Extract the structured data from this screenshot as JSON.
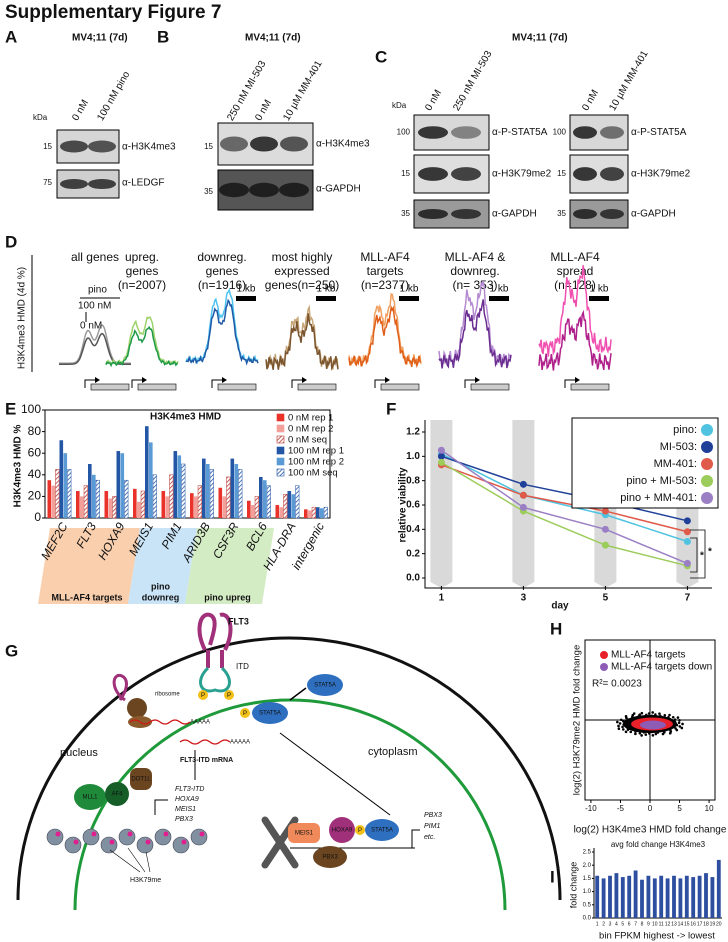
{
  "title": "Supplementary Figure 7",
  "A": {
    "letter": "A",
    "condition": "MV4;11 (7d)",
    "kda": "kDa",
    "lanes": [
      "0 nM",
      "100 nM pino"
    ],
    "markers": [
      "15",
      "75"
    ],
    "antibodies": [
      "α-H3K4me3",
      "α-LEDGF"
    ]
  },
  "B": {
    "letter": "B",
    "condition": "MV4;11 (7d)",
    "lanes": [
      "250 nM MI-503",
      "0 nM",
      "10 µM MM-401"
    ],
    "markers": [
      "15",
      "35"
    ],
    "antibodies": [
      "α-H3K4me3",
      "α-GAPDH"
    ]
  },
  "C": {
    "letter": "C",
    "condition": "MV4;11 (7d)",
    "kda": "kDa",
    "lanes_left": [
      "0 nM",
      "250 nM MI-503"
    ],
    "lanes_right": [
      "0 nM",
      "10 µM MM-401"
    ],
    "markers_left": [
      "100",
      "15",
      "35"
    ],
    "markers_right": [
      "100",
      "15",
      "35"
    ],
    "antibodies_left": [
      "α-P-STAT5A",
      "α-H3K79me2",
      "α-GAPDH"
    ],
    "antibodies_right": [
      "α-P-STAT5A",
      "α-H3K79me2",
      "α-GAPDH"
    ]
  },
  "D": {
    "letter": "D",
    "ylabel": "H3K4me3 HMD (4d %)",
    "treatment": "pino",
    "high": "100 nM",
    "low": "0 nM",
    "scale_bar": "1 kb",
    "groups": [
      {
        "lines": [
          "all genes"
        ],
        "colors": [
          "#9a9a9a",
          "#555555"
        ],
        "bar": false
      },
      {
        "lines": [
          "upreg.",
          "genes",
          "(n=2007)"
        ],
        "colors": [
          "#9dd36b",
          "#1f9a48"
        ],
        "bar": false
      },
      {
        "lines": [
          "downreg.",
          "genes",
          "(n=1916)"
        ],
        "colors": [
          "#4fc3f0",
          "#1f5aa6"
        ],
        "bar": true
      },
      {
        "lines": [
          "most highly",
          "expressed",
          "genes(n=250)"
        ],
        "colors": [
          "#c8a87a",
          "#7a5530"
        ],
        "bar": true
      },
      {
        "lines": [
          "MLL-AF4",
          "targets",
          "(n=2377)"
        ],
        "colors": [
          "#f0a060",
          "#e0601a"
        ],
        "bar": true
      },
      {
        "lines": [
          "MLL-AF4 &",
          "downreg.",
          "(n= 353)"
        ],
        "colors": [
          "#b48ad0",
          "#6a2e90"
        ],
        "bar": true
      },
      {
        "lines": [
          "MLL-AF4",
          "spread",
          "(n=128)"
        ],
        "colors": [
          "#f050b0",
          "#b0208a"
        ],
        "bar": true
      }
    ]
  },
  "G": {
    "letter": "G",
    "flt3": "FLT3",
    "itd": "ITD",
    "ribosome": "ribosome",
    "polya": "AAAAA",
    "p": "P",
    "stat5a": "STAT5A",
    "cytoplasm": "cytoplasm",
    "nucleus": "nucleus",
    "mrna": "FLT3-ITD mRNA",
    "mll1": "MLL1",
    "af4": "AF4",
    "dot1l": "DOT1L",
    "targets": [
      "FLT3-ITD",
      "HOXA9",
      "MEIS1",
      "PBX3"
    ],
    "h3k79me": "H3K79me",
    "meis1": "MEIS1",
    "hoxa9": "HOXA9",
    "pbx3": "PBX3",
    "outputs": [
      "PBX3",
      "PIM1",
      "etc."
    ]
  },
  "chart_data": [
    {
      "letter": "E",
      "type": "bar",
      "title": "H3K4me3 HMD",
      "ylabel": "H3K4me3 HMD %",
      "categories": [
        "MEF2C",
        "FLT3",
        "HOXA9",
        "MEIS1",
        "PIM1",
        "ARID3B",
        "CSF3R",
        "BCL6",
        "HLA-DRA",
        "intergenic"
      ],
      "ylim": [
        0,
        100
      ],
      "yticks": [
        0,
        20,
        40,
        60,
        80,
        100
      ],
      "series": [
        {
          "name": "0 nM rep 1",
          "color": "#e8322a",
          "pattern": "solid",
          "values": [
            35,
            25,
            25,
            27,
            25,
            23,
            28,
            16,
            12,
            8
          ]
        },
        {
          "name": "0 nM rep 2",
          "color": "#f4a09a",
          "pattern": "solid",
          "values": [
            30,
            20,
            18,
            15,
            20,
            20,
            20,
            12,
            10,
            7
          ]
        },
        {
          "name": "0 nM seq",
          "color": "#b8372f",
          "pattern": "hatched",
          "values": [
            45,
            30,
            20,
            25,
            40,
            30,
            38,
            20,
            22,
            10
          ]
        },
        {
          "name": "100 nM rep 1",
          "color": "#2456a6",
          "pattern": "solid",
          "values": [
            72,
            50,
            62,
            85,
            62,
            55,
            55,
            38,
            25,
            10
          ]
        },
        {
          "name": "100 nM rep 2",
          "color": "#5b9bd5",
          "pattern": "solid",
          "values": [
            60,
            40,
            60,
            70,
            58,
            50,
            50,
            35,
            22,
            9
          ]
        },
        {
          "name": "100 nM seq",
          "color": "#2456a6",
          "pattern": "hatched",
          "values": [
            45,
            35,
            35,
            40,
            50,
            45,
            45,
            30,
            30,
            10
          ]
        }
      ],
      "groups": [
        {
          "lines": [
            "MLL-AF4 targets"
          ],
          "color": "#f9cfae"
        },
        {
          "lines": [
            "pino",
            "downreg"
          ],
          "color": "#c9e4f7"
        },
        {
          "lines": [
            "pino upreg"
          ],
          "color": "#d4ecc4"
        }
      ]
    },
    {
      "letter": "F",
      "type": "line",
      "ylabel": "relative viability",
      "xlabel": "day",
      "x": [
        1,
        3,
        5,
        7
      ],
      "xlim": [
        0.6,
        7.6
      ],
      "xticks": [
        1,
        3,
        5,
        7
      ],
      "ylim": [
        0,
        1.2
      ],
      "yticks": [
        {
          "value": 0,
          "label": "0.0"
        },
        0.2,
        0.4,
        0.6,
        0.8,
        {
          "value": 1,
          "label": "1.0"
        },
        1.2
      ],
      "series": [
        {
          "name": "pino:",
          "color": "#4fc3e0",
          "values": [
            1.02,
            0.68,
            0.52,
            0.3
          ]
        },
        {
          "name": "MI-503:",
          "color": "#1f3f99",
          "values": [
            1.0,
            0.77,
            0.63,
            0.47
          ]
        },
        {
          "name": "MM-401:",
          "color": "#e05a4a",
          "values": [
            0.93,
            0.68,
            0.55,
            0.38
          ]
        },
        {
          "name": "pino + MI-503:",
          "color": "#9ccc5a",
          "values": [
            0.95,
            0.55,
            0.27,
            0.1
          ]
        },
        {
          "name": "pino + MM-401:",
          "color": "#9b7fc4",
          "values": [
            1.05,
            0.58,
            0.4,
            0.12
          ]
        }
      ],
      "annotations": [
        "*",
        "*"
      ]
    },
    {
      "letter": "H",
      "type": "scatter",
      "xlabel": "log(2) H3K4me3 HMD fold change",
      "ylabel": "log(2) H3K79me2 HMD fold change",
      "annotation": "R²= 0.0023",
      "xlim": [
        -11,
        11
      ],
      "xticks": [
        -10,
        -5,
        0,
        5,
        10
      ],
      "series": [
        {
          "name": "MLL-AF4 targets",
          "color": "#e8202a"
        },
        {
          "name": "MLL-AF4 targets down",
          "color": "#8e5bb5"
        }
      ]
    },
    {
      "letter": "I",
      "type": "bar",
      "title": "avg fold change H3K4me3",
      "ylabel": "fold change",
      "xlabel": "bin FPKM highest -> lowest",
      "categories": [
        "1",
        "2",
        "3",
        "4",
        "5",
        "6",
        "7",
        "8",
        "9",
        "10",
        "11",
        "12",
        "13",
        "14",
        "15",
        "16",
        "17",
        "18",
        "19",
        "20"
      ],
      "values": [
        1.6,
        1.5,
        1.6,
        1.7,
        1.55,
        1.6,
        1.8,
        1.45,
        1.6,
        1.5,
        1.6,
        1.5,
        1.6,
        1.5,
        1.6,
        1.55,
        1.6,
        1.7,
        1.55,
        2.2
      ],
      "color": "#2e4fa0",
      "ylim": [
        0,
        2.5
      ],
      "yticks": [
        {
          "value": 0,
          "label": "0.0"
        },
        0.5,
        {
          "value": 1,
          "label": "1.0"
        },
        1.5,
        {
          "value": 2,
          "label": "2.0"
        },
        2.5
      ]
    }
  ]
}
